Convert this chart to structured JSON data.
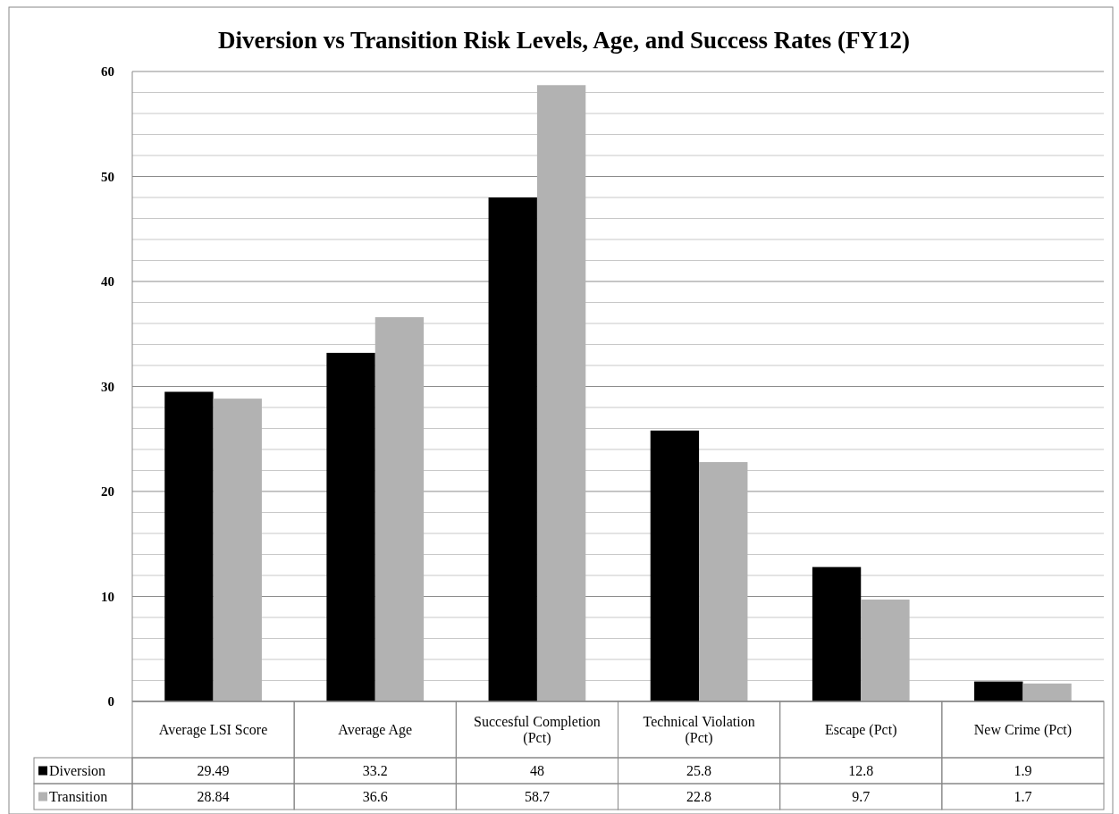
{
  "chart_data": {
    "type": "bar",
    "title": "Diversion vs Transition Risk Levels, Age, and Success Rates (FY12)",
    "categories": [
      "Average LSI Score",
      "Average Age",
      "Succesful Completion (Pct)",
      "Technical Violation (Pct)",
      "Escape (Pct)",
      "New Crime (Pct)"
    ],
    "series": [
      {
        "name": "Diversion",
        "color": "#000000",
        "values": [
          29.49,
          33.2,
          48,
          25.8,
          12.8,
          1.9
        ]
      },
      {
        "name": "Transition",
        "color": "#b2b2b2",
        "values": [
          28.84,
          36.6,
          58.7,
          22.8,
          9.7,
          1.7
        ]
      }
    ],
    "ylim": [
      0,
      60
    ],
    "yticks": [
      0,
      {
        "value": 2,
        "label": null
      },
      {
        "value": 4,
        "label": null
      },
      {
        "value": 6,
        "label": null
      },
      {
        "value": 8,
        "label": null
      },
      10,
      {
        "value": 12,
        "label": null
      },
      {
        "value": 14,
        "label": null
      },
      {
        "value": 16,
        "label": null
      },
      {
        "value": 18,
        "label": null
      },
      20,
      {
        "value": 22,
        "label": null
      },
      {
        "value": 24,
        "label": null
      },
      {
        "value": 26,
        "label": null
      },
      {
        "value": 28,
        "label": null
      },
      30,
      {
        "value": 32,
        "label": null
      },
      {
        "value": 34,
        "label": null
      },
      {
        "value": 36,
        "label": null
      },
      {
        "value": 38,
        "label": null
      },
      40,
      {
        "value": 42,
        "label": null
      },
      {
        "value": 44,
        "label": null
      },
      {
        "value": 46,
        "label": null
      },
      {
        "value": 48,
        "label": null
      },
      50,
      {
        "value": 52,
        "label": null
      },
      {
        "value": 54,
        "label": null
      },
      {
        "value": 56,
        "label": null
      },
      {
        "value": 58,
        "label": null
      },
      60
    ],
    "grid": true,
    "data_labels": true,
    "legend": "bottom"
  }
}
